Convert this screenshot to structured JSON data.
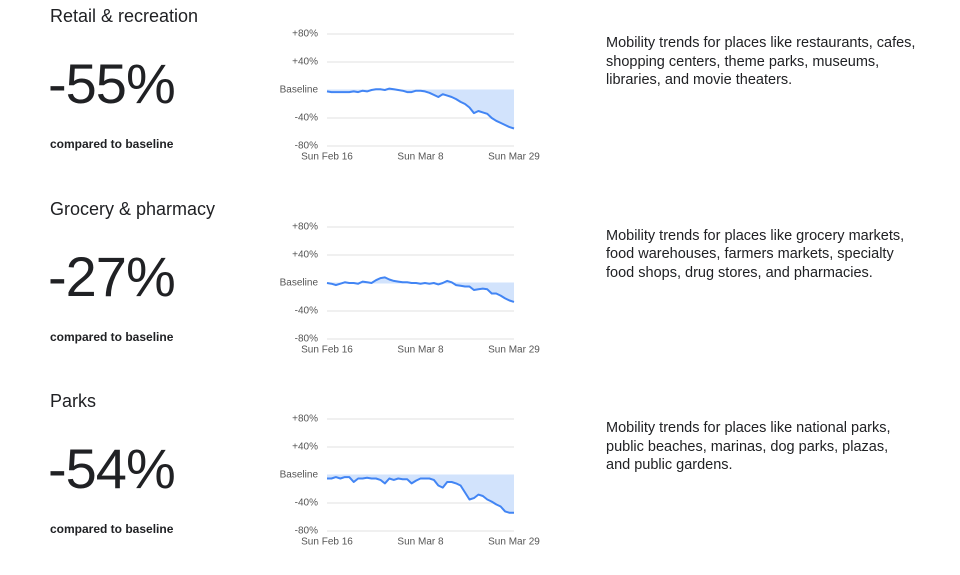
{
  "chart_data": [
    {
      "type": "line",
      "title": "Retail & recreation",
      "headline": "-55%",
      "subtitle": "compared to baseline",
      "description": "Mobility trends for places like restaurants, cafes, shopping centers, theme parks, museums, libraries, and movie theaters.",
      "color": "#4285f4",
      "fill": "#d2e3fc",
      "grid": true,
      "categories": [
        "Sun Feb 16",
        null,
        null,
        null,
        null,
        null,
        null,
        null,
        null,
        null,
        null,
        null,
        null,
        null,
        null,
        null,
        null,
        null,
        null,
        null,
        null,
        "Sun Mar 8",
        null,
        null,
        null,
        null,
        null,
        null,
        null,
        null,
        null,
        null,
        null,
        null,
        null,
        null,
        null,
        null,
        null,
        null,
        null,
        null,
        "Sun Mar 29"
      ],
      "values": [
        -2,
        -3,
        -3,
        -3,
        -3,
        -3,
        -2,
        -3,
        -1,
        -2,
        0,
        1,
        1,
        0,
        2,
        1,
        0,
        -1,
        -3,
        -3,
        -1,
        -1,
        -2,
        -4,
        -7,
        -10,
        -6,
        -8,
        -10,
        -13,
        -17,
        -20,
        -25,
        -33,
        -30,
        -32,
        -34,
        -40,
        -44,
        -47,
        -50,
        -53,
        -55
      ],
      "ylim": [
        -80,
        80
      ],
      "yticks": [
        {
          "value": 80,
          "label": "+80%"
        },
        {
          "value": 40,
          "label": "+40%"
        },
        {
          "value": 0,
          "label": "Baseline"
        },
        {
          "value": -40,
          "label": "-40%"
        },
        {
          "value": -80,
          "label": "-80%"
        }
      ]
    },
    {
      "type": "line",
      "title": "Grocery & pharmacy",
      "headline": "-27%",
      "subtitle": "compared to baseline",
      "description": "Mobility trends for places like grocery markets, food warehouses, farmers markets, specialty food shops, drug stores, and pharmacies.",
      "color": "#4285f4",
      "fill": "#d2e3fc",
      "grid": true,
      "categories": [
        "Sun Feb 16",
        null,
        null,
        null,
        null,
        null,
        null,
        null,
        null,
        null,
        null,
        null,
        null,
        null,
        null,
        null,
        null,
        null,
        null,
        null,
        null,
        "Sun Mar 8",
        null,
        null,
        null,
        null,
        null,
        null,
        null,
        null,
        null,
        null,
        null,
        null,
        null,
        null,
        null,
        null,
        null,
        null,
        null,
        null,
        "Sun Mar 29"
      ],
      "values": [
        0,
        -1,
        -3,
        -1,
        1,
        0,
        0,
        -1,
        2,
        1,
        0,
        4,
        7,
        8,
        5,
        3,
        2,
        1,
        1,
        0,
        0,
        -1,
        0,
        -1,
        0,
        -2,
        0,
        3,
        1,
        -3,
        -4,
        -5,
        -5,
        -10,
        -9,
        -8,
        -9,
        -15,
        -15,
        -18,
        -22,
        -25,
        -27
      ],
      "ylim": [
        -80,
        80
      ],
      "yticks": [
        {
          "value": 80,
          "label": "+80%"
        },
        {
          "value": 40,
          "label": "+40%"
        },
        {
          "value": 0,
          "label": "Baseline"
        },
        {
          "value": -40,
          "label": "-40%"
        },
        {
          "value": -80,
          "label": "-80%"
        }
      ]
    },
    {
      "type": "line",
      "title": "Parks",
      "headline": "-54%",
      "subtitle": "compared to baseline",
      "description": "Mobility trends for places like national parks, public beaches, marinas, dog parks, plazas, and public gardens.",
      "color": "#4285f4",
      "fill": "#d2e3fc",
      "grid": true,
      "categories": [
        "Sun Feb 16",
        null,
        null,
        null,
        null,
        null,
        null,
        null,
        null,
        null,
        null,
        null,
        null,
        null,
        null,
        null,
        null,
        null,
        null,
        null,
        null,
        "Sun Mar 8",
        null,
        null,
        null,
        null,
        null,
        null,
        null,
        null,
        null,
        null,
        null,
        null,
        null,
        null,
        null,
        null,
        null,
        null,
        null,
        null,
        "Sun Mar 29"
      ],
      "values": [
        -5,
        -5,
        -3,
        -5,
        -3,
        -3,
        -10,
        -5,
        -5,
        -4,
        -5,
        -5,
        -7,
        -12,
        -5,
        -7,
        -5,
        -6,
        -6,
        -12,
        -8,
        -5,
        -5,
        -5,
        -7,
        -15,
        -18,
        -10,
        -10,
        -12,
        -15,
        -25,
        -35,
        -33,
        -28,
        -30,
        -35,
        -38,
        -42,
        -45,
        -52,
        -54,
        -54
      ],
      "ylim": [
        -80,
        80
      ],
      "yticks": [
        {
          "value": 80,
          "label": "+80%"
        },
        {
          "value": 40,
          "label": "+40%"
        },
        {
          "value": 0,
          "label": "Baseline"
        },
        {
          "value": -40,
          "label": "-40%"
        },
        {
          "value": -80,
          "label": "-80%"
        }
      ]
    }
  ]
}
